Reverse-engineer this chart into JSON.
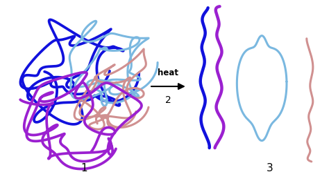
{
  "bg_color": "#ffffff",
  "label1": "1",
  "label2": "2",
  "label3": "3",
  "heat_text": "heat",
  "colors": {
    "dark_blue": "#1111dd",
    "light_blue": "#7ab8e0",
    "pink": "#d09090",
    "purple": "#9b20d0"
  },
  "lw_tangled": 2.2,
  "lw_unfolded": 2.2
}
